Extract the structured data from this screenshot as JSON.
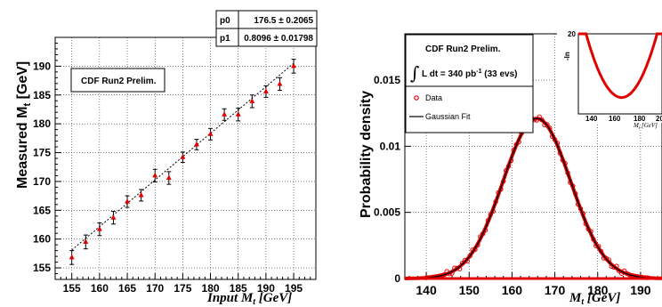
{
  "chart_data": [
    {
      "type": "scatter",
      "title": "",
      "xlabel": "Input M_t [GeV]",
      "ylabel": "Measured M_t [GeV]",
      "xlim": [
        152,
        199
      ],
      "ylim": [
        153,
        195
      ],
      "x_ticks": [
        "155",
        "160",
        "165",
        "170",
        "175",
        "180",
        "185",
        "190",
        "195"
      ],
      "y_ticks": [
        "155",
        "160",
        "165",
        "170",
        "175",
        "180",
        "185",
        "190"
      ],
      "grid": true,
      "label": "CDF Run2 Prelim.",
      "fit_stats": [
        {
          "name": "p0",
          "value": "176.5 ± 0.2065"
        },
        {
          "name": "p1",
          "value": "0.8096 ± 0.01798"
        }
      ],
      "fit_line": {
        "style": "dashed",
        "x": [
          155,
          195
        ],
        "y": [
          158.1,
          190.5
        ]
      },
      "points": {
        "x": [
          155,
          157.5,
          160,
          162.5,
          165,
          167.5,
          170,
          172.5,
          175,
          177.5,
          180,
          182.5,
          185,
          187.5,
          190,
          192.5,
          195
        ],
        "y": [
          156.8,
          159.5,
          161.7,
          163.7,
          166.5,
          167.6,
          171.0,
          170.6,
          174.2,
          176.4,
          178.2,
          181.6,
          181.6,
          183.9,
          185.6,
          186.9,
          190.0
        ],
        "err": [
          1.2,
          1.2,
          1.1,
          1.1,
          1.0,
          1.0,
          1.1,
          1.1,
          0.9,
          0.9,
          1.0,
          1.0,
          1.1,
          1.1,
          1.0,
          1.1,
          1.2
        ]
      }
    },
    {
      "type": "line",
      "title": "",
      "xlabel": "M_t [GeV]",
      "ylabel": "Probability density",
      "xlim": [
        135,
        195
      ],
      "ylim": [
        0,
        0.0185
      ],
      "x_ticks": [
        "140",
        "150",
        "160",
        "170",
        "180",
        "190"
      ],
      "y_ticks": [
        "0",
        "0.005",
        "0.01",
        "0.015"
      ],
      "grid": true,
      "label": "CDF Run2 Prelim.",
      "luminosity": "L dt = 340 pb⁻¹ (33 evs)",
      "legend": [
        "Data",
        "Gaussian Fit"
      ],
      "gaussian": {
        "mean": 165.8,
        "sigma": 7.9,
        "peak": 0.0121
      },
      "inset": {
        "ylabel": "-ln",
        "xlabel": "M_t [GeV]",
        "x_ticks": [
          "140",
          "160",
          "180",
          "20"
        ],
        "y_tick": "20",
        "curve": {
          "x": [
            135,
            145,
            155,
            160,
            165,
            170,
            175,
            185,
            195
          ],
          "y": [
            22,
            14,
            7,
            5,
            4.5,
            5,
            7,
            14,
            22
          ]
        }
      }
    }
  ]
}
